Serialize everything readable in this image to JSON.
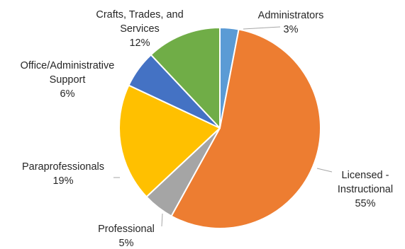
{
  "chart_data": {
    "type": "pie",
    "title": "",
    "legend": "none",
    "start_angle_deg": 0,
    "direction": "clockwise",
    "slices": [
      {
        "category": "Administrators",
        "value": 3,
        "label_lines": [
          "Administrators"
        ],
        "pct_text": "3%",
        "color": "#5B9BD5"
      },
      {
        "category": "Licensed - Instructional",
        "value": 55,
        "label_lines": [
          "Licensed -",
          "Instructional"
        ],
        "pct_text": "55%",
        "color": "#ED7D31"
      },
      {
        "category": "Professional",
        "value": 5,
        "label_lines": [
          "Professional"
        ],
        "pct_text": "5%",
        "color": "#A5A5A5"
      },
      {
        "category": "Paraprofessionals",
        "value": 19,
        "label_lines": [
          "Paraprofessionals"
        ],
        "pct_text": "19%",
        "color": "#FFC000"
      },
      {
        "category": "Office/Administrative Support",
        "value": 6,
        "label_lines": [
          "Office/Administrative",
          "Support"
        ],
        "pct_text": "6%",
        "color": "#4472C4"
      },
      {
        "category": "Crafts, Trades, and Services",
        "value": 12,
        "label_lines": [
          "Crafts, Trades, and",
          "Services"
        ],
        "pct_text": "12%",
        "color": "#70AD47"
      }
    ]
  }
}
